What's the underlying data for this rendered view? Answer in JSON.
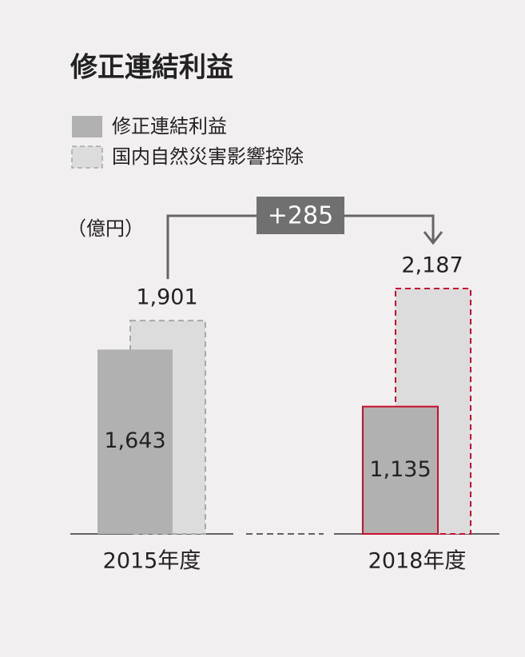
{
  "chart_data": {
    "type": "bar",
    "title": "修正連結利益",
    "unit_label": "（億円）",
    "annotation": "+285",
    "categories": [
      "2015年度",
      "2018年度"
    ],
    "series": [
      {
        "name": "修正連結利益",
        "color": "#b1b1b1",
        "edgecolors": [
          "none",
          "#c8102e"
        ],
        "dashed": false,
        "values": [
          1643,
          1135
        ],
        "value_labels": [
          "1,643",
          "1,135"
        ]
      },
      {
        "name": "国内自然災害影響控除",
        "color": "#dcdcdc",
        "edgecolors": [
          "#a8a8a8",
          "#c8102e"
        ],
        "dashed": true,
        "values": [
          1901,
          2187
        ],
        "value_labels": [
          "1,901",
          "2,187"
        ]
      }
    ]
  }
}
